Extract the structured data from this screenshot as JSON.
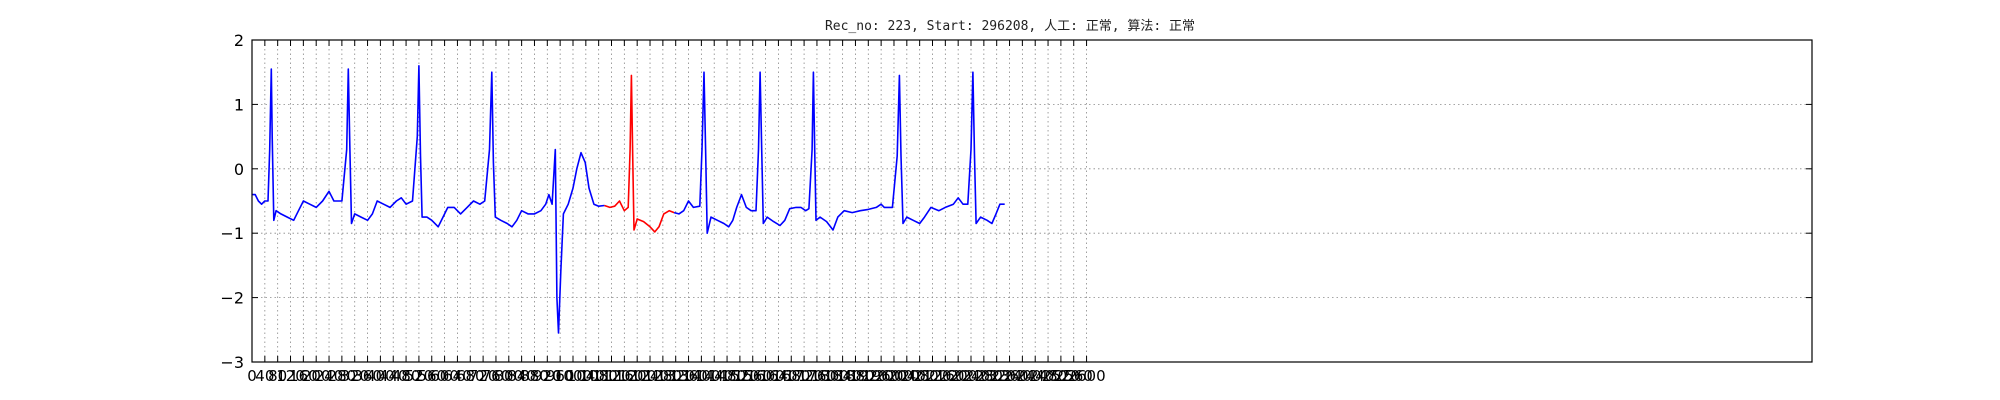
{
  "chart_data": {
    "type": "line",
    "title": "Rec_no: 223, Start: 296208, 人工: 正常, 算法: 正常",
    "xlabel": "",
    "ylabel": "",
    "xlim": [
      0,
      4860
    ],
    "ylim": [
      -3,
      2
    ],
    "grid": true,
    "yticks": [
      -3,
      -2,
      -1,
      0,
      1,
      2
    ],
    "xticks": [
      0,
      40,
      80,
      120,
      160,
      200,
      240,
      280,
      320,
      360,
      400,
      440,
      480,
      520,
      560,
      600,
      640,
      680,
      720,
      760,
      800,
      840,
      880,
      920,
      960,
      1000,
      1040,
      1080,
      1120,
      1160,
      1200,
      1240,
      1280,
      1320,
      1360,
      1400,
      1440,
      1480,
      1520,
      1560,
      1600,
      1640,
      1680,
      1720,
      1760,
      1800,
      1840,
      1880,
      1920,
      1960,
      2000,
      2040,
      2080,
      2120,
      2160,
      2200,
      2240,
      2280,
      2320,
      2360,
      2400,
      2440,
      2480,
      2520,
      2560,
      2600
    ],
    "colors": {
      "normal": "#0000ff",
      "highlight": "#ff0000",
      "grid": "#888888"
    },
    "series": [
      {
        "color": "#0000ff",
        "points": [
          [
            0,
            -0.4
          ],
          [
            10,
            -0.4
          ],
          [
            20,
            -0.5
          ],
          [
            30,
            -0.55
          ],
          [
            40,
            -0.5
          ],
          [
            50,
            -0.5
          ],
          [
            55,
            0.3
          ],
          [
            60,
            1.55
          ],
          [
            63,
            0.5
          ],
          [
            68,
            -0.8
          ],
          [
            75,
            -0.65
          ],
          [
            90,
            -0.7
          ],
          [
            110,
            -0.75
          ],
          [
            130,
            -0.8
          ],
          [
            145,
            -0.65
          ],
          [
            160,
            -0.5
          ],
          [
            180,
            -0.55
          ],
          [
            200,
            -0.6
          ],
          [
            220,
            -0.5
          ],
          [
            240,
            -0.35
          ],
          [
            255,
            -0.5
          ],
          [
            280,
            -0.5
          ],
          [
            295,
            0.3
          ],
          [
            300,
            1.55
          ],
          [
            305,
            0.3
          ],
          [
            310,
            -0.85
          ],
          [
            320,
            -0.7
          ],
          [
            340,
            -0.75
          ],
          [
            360,
            -0.8
          ],
          [
            375,
            -0.7
          ],
          [
            390,
            -0.5
          ],
          [
            410,
            -0.55
          ],
          [
            430,
            -0.6
          ],
          [
            450,
            -0.5
          ],
          [
            465,
            -0.45
          ],
          [
            480,
            -0.55
          ],
          [
            500,
            -0.5
          ],
          [
            515,
            0.5
          ],
          [
            520,
            1.6
          ],
          [
            525,
            0.2
          ],
          [
            530,
            -0.75
          ],
          [
            545,
            -0.75
          ],
          [
            560,
            -0.8
          ],
          [
            580,
            -0.9
          ],
          [
            595,
            -0.75
          ],
          [
            610,
            -0.6
          ],
          [
            630,
            -0.6
          ],
          [
            650,
            -0.7
          ],
          [
            670,
            -0.6
          ],
          [
            690,
            -0.5
          ],
          [
            710,
            -0.55
          ],
          [
            725,
            -0.5
          ],
          [
            740,
            0.3
          ],
          [
            747,
            1.5
          ],
          [
            752,
            0.1
          ],
          [
            758,
            -0.75
          ],
          [
            775,
            -0.8
          ],
          [
            795,
            -0.85
          ],
          [
            810,
            -0.9
          ],
          [
            825,
            -0.8
          ],
          [
            840,
            -0.65
          ],
          [
            860,
            -0.7
          ],
          [
            880,
            -0.7
          ],
          [
            900,
            -0.65
          ],
          [
            915,
            -0.55
          ],
          [
            925,
            -0.4
          ],
          [
            935,
            -0.55
          ],
          [
            945,
            0.3
          ],
          [
            950,
            -2.0
          ],
          [
            955,
            -2.55
          ],
          [
            962,
            -1.6
          ],
          [
            970,
            -0.7
          ],
          [
            985,
            -0.55
          ],
          [
            1000,
            -0.3
          ],
          [
            1012,
            0.0
          ],
          [
            1025,
            0.25
          ],
          [
            1038,
            0.1
          ],
          [
            1050,
            -0.3
          ],
          [
            1065,
            -0.55
          ],
          [
            1080,
            -0.58
          ],
          [
            1098,
            -0.57
          ]
        ]
      },
      {
        "color": "#ff0000",
        "points": [
          [
            1098,
            -0.57
          ],
          [
            1115,
            -0.6
          ],
          [
            1130,
            -0.58
          ],
          [
            1145,
            -0.5
          ],
          [
            1160,
            -0.65
          ],
          [
            1172,
            -0.6
          ],
          [
            1178,
            0.3
          ],
          [
            1182,
            1.45
          ],
          [
            1186,
            0.2
          ],
          [
            1190,
            -0.95
          ],
          [
            1200,
            -0.78
          ],
          [
            1220,
            -0.82
          ],
          [
            1240,
            -0.9
          ],
          [
            1255,
            -0.98
          ],
          [
            1268,
            -0.9
          ],
          [
            1283,
            -0.7
          ],
          [
            1300,
            -0.65
          ],
          [
            1315,
            -0.68
          ]
        ]
      },
      {
        "color": "#0000ff",
        "points": [
          [
            1315,
            -0.68
          ],
          [
            1330,
            -0.7
          ],
          [
            1345,
            -0.65
          ],
          [
            1360,
            -0.5
          ],
          [
            1375,
            -0.6
          ],
          [
            1395,
            -0.58
          ],
          [
            1402,
            0.3
          ],
          [
            1408,
            1.5
          ],
          [
            1413,
            0.3
          ],
          [
            1418,
            -1.0
          ],
          [
            1430,
            -0.75
          ],
          [
            1450,
            -0.8
          ],
          [
            1470,
            -0.85
          ],
          [
            1485,
            -0.9
          ],
          [
            1498,
            -0.8
          ],
          [
            1510,
            -0.6
          ],
          [
            1525,
            -0.4
          ],
          [
            1540,
            -0.6
          ],
          [
            1555,
            -0.65
          ],
          [
            1570,
            -0.65
          ],
          [
            1578,
            0.3
          ],
          [
            1583,
            1.5
          ],
          [
            1588,
            0.3
          ],
          [
            1593,
            -0.85
          ],
          [
            1605,
            -0.75
          ],
          [
            1625,
            -0.82
          ],
          [
            1645,
            -0.88
          ],
          [
            1660,
            -0.8
          ],
          [
            1675,
            -0.62
          ],
          [
            1695,
            -0.6
          ],
          [
            1710,
            -0.6
          ],
          [
            1725,
            -0.65
          ],
          [
            1735,
            -0.62
          ],
          [
            1745,
            0.3
          ],
          [
            1749,
            1.5
          ],
          [
            1753,
            0.3
          ],
          [
            1757,
            -0.8
          ],
          [
            1770,
            -0.75
          ],
          [
            1790,
            -0.82
          ],
          [
            1810,
            -0.95
          ],
          [
            1825,
            -0.75
          ],
          [
            1845,
            -0.65
          ],
          [
            1870,
            -0.68
          ],
          [
            1895,
            -0.65
          ],
          [
            1920,
            -0.63
          ],
          [
            1945,
            -0.6
          ],
          [
            1960,
            -0.55
          ],
          [
            1970,
            -0.6
          ],
          [
            1995,
            -0.6
          ],
          [
            2010,
            0.2
          ],
          [
            2017,
            1.45
          ],
          [
            2022,
            0.2
          ],
          [
            2028,
            -0.85
          ],
          [
            2040,
            -0.75
          ],
          [
            2060,
            -0.8
          ],
          [
            2080,
            -0.85
          ],
          [
            2095,
            -0.75
          ],
          [
            2115,
            -0.6
          ],
          [
            2140,
            -0.65
          ],
          [
            2160,
            -0.6
          ],
          [
            2185,
            -0.55
          ],
          [
            2200,
            -0.45
          ],
          [
            2215,
            -0.55
          ],
          [
            2230,
            -0.55
          ],
          [
            2240,
            0.3
          ],
          [
            2246,
            1.5
          ],
          [
            2251,
            0.2
          ],
          [
            2256,
            -0.85
          ],
          [
            2270,
            -0.75
          ],
          [
            2290,
            -0.8
          ],
          [
            2305,
            -0.85
          ],
          [
            2318,
            -0.7
          ],
          [
            2330,
            -0.55
          ],
          [
            2345,
            -0.55
          ]
        ]
      }
    ]
  }
}
